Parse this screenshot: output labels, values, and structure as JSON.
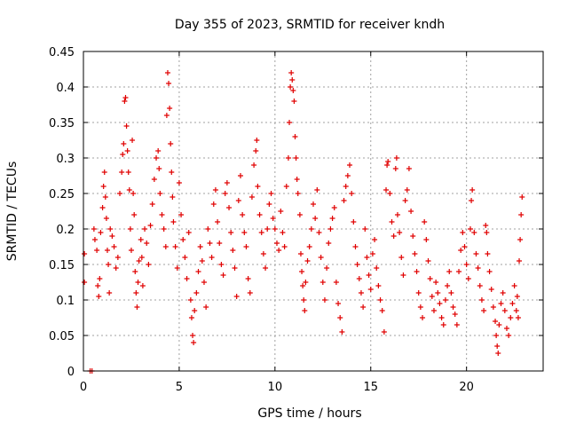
{
  "chart_data": {
    "type": "scatter",
    "title": "Day 355 of 2023, SRMTID for receiver kndh",
    "xlabel": "GPS time / hours",
    "ylabel": "SRMTID / TECUs",
    "xlim": [
      0,
      24
    ],
    "ylim": [
      0,
      0.45
    ],
    "xticks": [
      0,
      5,
      10,
      15,
      20
    ],
    "xtick_labels": [
      "0",
      "5",
      "10",
      "15",
      "20"
    ],
    "yticks": [
      0,
      0.05,
      0.1,
      0.15,
      0.2,
      0.25,
      0.3,
      0.35,
      0.4,
      0.45
    ],
    "ytick_labels": [
      "0",
      "0.05",
      "0.1",
      "0.15",
      "0.2",
      "0.25",
      "0.3",
      "0.35",
      "0.4",
      "0.45"
    ],
    "grid": true,
    "marker": "+",
    "color": "#e00000",
    "series": [
      {
        "name": "SRMTID",
        "points": [
          [
            0.05,
            0.165
          ],
          [
            0.05,
            0.125
          ],
          [
            0.35,
            0.0
          ],
          [
            0.45,
            0.0
          ],
          [
            0.55,
            0.2
          ],
          [
            0.6,
            0.185
          ],
          [
            0.7,
            0.17
          ],
          [
            0.75,
            0.12
          ],
          [
            0.8,
            0.105
          ],
          [
            0.85,
            0.13
          ],
          [
            0.9,
            0.195
          ],
          [
            1.0,
            0.23
          ],
          [
            1.05,
            0.26
          ],
          [
            1.1,
            0.28
          ],
          [
            1.15,
            0.245
          ],
          [
            1.2,
            0.215
          ],
          [
            1.25,
            0.17
          ],
          [
            1.3,
            0.15
          ],
          [
            1.35,
            0.11
          ],
          [
            1.4,
            0.2
          ],
          [
            1.5,
            0.19
          ],
          [
            1.6,
            0.175
          ],
          [
            1.7,
            0.145
          ],
          [
            1.8,
            0.16
          ],
          [
            1.9,
            0.25
          ],
          [
            2.0,
            0.28
          ],
          [
            2.05,
            0.305
          ],
          [
            2.1,
            0.32
          ],
          [
            2.15,
            0.38
          ],
          [
            2.2,
            0.385
          ],
          [
            2.25,
            0.345
          ],
          [
            2.3,
            0.31
          ],
          [
            2.35,
            0.28
          ],
          [
            2.4,
            0.255
          ],
          [
            2.45,
            0.2
          ],
          [
            2.5,
            0.17
          ],
          [
            2.55,
            0.325
          ],
          [
            2.6,
            0.25
          ],
          [
            2.65,
            0.22
          ],
          [
            2.7,
            0.14
          ],
          [
            2.75,
            0.11
          ],
          [
            2.8,
            0.09
          ],
          [
            2.85,
            0.125
          ],
          [
            2.9,
            0.155
          ],
          [
            3.0,
            0.185
          ],
          [
            3.05,
            0.16
          ],
          [
            3.1,
            0.12
          ],
          [
            3.2,
            0.2
          ],
          [
            3.3,
            0.18
          ],
          [
            3.4,
            0.15
          ],
          [
            3.5,
            0.205
          ],
          [
            3.6,
            0.235
          ],
          [
            3.7,
            0.27
          ],
          [
            3.8,
            0.3
          ],
          [
            3.9,
            0.31
          ],
          [
            3.95,
            0.285
          ],
          [
            4.0,
            0.25
          ],
          [
            4.1,
            0.22
          ],
          [
            4.2,
            0.2
          ],
          [
            4.3,
            0.175
          ],
          [
            4.35,
            0.36
          ],
          [
            4.4,
            0.42
          ],
          [
            4.45,
            0.405
          ],
          [
            4.5,
            0.37
          ],
          [
            4.55,
            0.32
          ],
          [
            4.6,
            0.28
          ],
          [
            4.65,
            0.245
          ],
          [
            4.7,
            0.21
          ],
          [
            4.8,
            0.175
          ],
          [
            4.9,
            0.145
          ],
          [
            5.0,
            0.265
          ],
          [
            5.1,
            0.22
          ],
          [
            5.2,
            0.185
          ],
          [
            5.3,
            0.16
          ],
          [
            5.4,
            0.13
          ],
          [
            5.5,
            0.195
          ],
          [
            5.6,
            0.1
          ],
          [
            5.65,
            0.075
          ],
          [
            5.7,
            0.05
          ],
          [
            5.75,
            0.04
          ],
          [
            5.8,
            0.085
          ],
          [
            5.9,
            0.11
          ],
          [
            6.0,
            0.14
          ],
          [
            6.1,
            0.175
          ],
          [
            6.2,
            0.155
          ],
          [
            6.3,
            0.125
          ],
          [
            6.4,
            0.09
          ],
          [
            6.5,
            0.2
          ],
          [
            6.6,
            0.18
          ],
          [
            6.7,
            0.16
          ],
          [
            6.8,
            0.235
          ],
          [
            6.9,
            0.255
          ],
          [
            7.0,
            0.21
          ],
          [
            7.1,
            0.18
          ],
          [
            7.2,
            0.15
          ],
          [
            7.3,
            0.135
          ],
          [
            7.4,
            0.25
          ],
          [
            7.5,
            0.265
          ],
          [
            7.6,
            0.23
          ],
          [
            7.7,
            0.195
          ],
          [
            7.8,
            0.17
          ],
          [
            7.9,
            0.145
          ],
          [
            8.0,
            0.105
          ],
          [
            8.1,
            0.24
          ],
          [
            8.2,
            0.275
          ],
          [
            8.3,
            0.22
          ],
          [
            8.4,
            0.195
          ],
          [
            8.5,
            0.175
          ],
          [
            8.6,
            0.13
          ],
          [
            8.7,
            0.11
          ],
          [
            8.8,
            0.245
          ],
          [
            8.9,
            0.29
          ],
          [
            9.0,
            0.31
          ],
          [
            9.05,
            0.325
          ],
          [
            9.1,
            0.26
          ],
          [
            9.2,
            0.22
          ],
          [
            9.3,
            0.195
          ],
          [
            9.4,
            0.165
          ],
          [
            9.5,
            0.145
          ],
          [
            9.6,
            0.2
          ],
          [
            9.7,
            0.235
          ],
          [
            9.8,
            0.25
          ],
          [
            9.9,
            0.215
          ],
          [
            10.0,
            0.2
          ],
          [
            10.1,
            0.18
          ],
          [
            10.2,
            0.17
          ],
          [
            10.3,
            0.225
          ],
          [
            10.4,
            0.195
          ],
          [
            10.5,
            0.175
          ],
          [
            10.6,
            0.26
          ],
          [
            10.7,
            0.3
          ],
          [
            10.75,
            0.35
          ],
          [
            10.8,
            0.4
          ],
          [
            10.85,
            0.42
          ],
          [
            10.9,
            0.41
          ],
          [
            10.95,
            0.395
          ],
          [
            11.0,
            0.38
          ],
          [
            11.05,
            0.33
          ],
          [
            11.1,
            0.3
          ],
          [
            11.15,
            0.27
          ],
          [
            11.2,
            0.25
          ],
          [
            11.3,
            0.22
          ],
          [
            11.35,
            0.165
          ],
          [
            11.4,
            0.14
          ],
          [
            11.45,
            0.12
          ],
          [
            11.5,
            0.1
          ],
          [
            11.55,
            0.085
          ],
          [
            11.6,
            0.125
          ],
          [
            11.7,
            0.155
          ],
          [
            11.8,
            0.175
          ],
          [
            11.9,
            0.2
          ],
          [
            12.0,
            0.235
          ],
          [
            12.1,
            0.215
          ],
          [
            12.2,
            0.255
          ],
          [
            12.3,
            0.195
          ],
          [
            12.4,
            0.16
          ],
          [
            12.5,
            0.125
          ],
          [
            12.6,
            0.1
          ],
          [
            12.7,
            0.145
          ],
          [
            12.8,
            0.18
          ],
          [
            12.9,
            0.2
          ],
          [
            13.0,
            0.215
          ],
          [
            13.1,
            0.23
          ],
          [
            13.2,
            0.125
          ],
          [
            13.3,
            0.095
          ],
          [
            13.4,
            0.075
          ],
          [
            13.5,
            0.055
          ],
          [
            13.6,
            0.24
          ],
          [
            13.7,
            0.26
          ],
          [
            13.8,
            0.275
          ],
          [
            13.9,
            0.29
          ],
          [
            14.0,
            0.25
          ],
          [
            14.1,
            0.21
          ],
          [
            14.2,
            0.175
          ],
          [
            14.3,
            0.15
          ],
          [
            14.4,
            0.13
          ],
          [
            14.5,
            0.11
          ],
          [
            14.6,
            0.09
          ],
          [
            14.7,
            0.2
          ],
          [
            14.8,
            0.16
          ],
          [
            14.9,
            0.135
          ],
          [
            15.0,
            0.115
          ],
          [
            15.1,
            0.165
          ],
          [
            15.2,
            0.185
          ],
          [
            15.3,
            0.145
          ],
          [
            15.4,
            0.12
          ],
          [
            15.5,
            0.1
          ],
          [
            15.6,
            0.085
          ],
          [
            15.7,
            0.055
          ],
          [
            15.8,
            0.255
          ],
          [
            15.85,
            0.29
          ],
          [
            15.9,
            0.295
          ],
          [
            16.0,
            0.25
          ],
          [
            16.1,
            0.21
          ],
          [
            16.2,
            0.19
          ],
          [
            16.3,
            0.285
          ],
          [
            16.35,
            0.3
          ],
          [
            16.4,
            0.22
          ],
          [
            16.5,
            0.195
          ],
          [
            16.6,
            0.16
          ],
          [
            16.7,
            0.135
          ],
          [
            16.8,
            0.24
          ],
          [
            16.9,
            0.255
          ],
          [
            17.0,
            0.285
          ],
          [
            17.1,
            0.225
          ],
          [
            17.2,
            0.19
          ],
          [
            17.3,
            0.165
          ],
          [
            17.4,
            0.14
          ],
          [
            17.5,
            0.11
          ],
          [
            17.6,
            0.09
          ],
          [
            17.7,
            0.075
          ],
          [
            17.8,
            0.21
          ],
          [
            17.9,
            0.185
          ],
          [
            18.0,
            0.155
          ],
          [
            18.1,
            0.13
          ],
          [
            18.2,
            0.105
          ],
          [
            18.3,
            0.085
          ],
          [
            18.4,
            0.125
          ],
          [
            18.5,
            0.11
          ],
          [
            18.6,
            0.095
          ],
          [
            18.7,
            0.075
          ],
          [
            18.8,
            0.065
          ],
          [
            18.9,
            0.1
          ],
          [
            19.0,
            0.12
          ],
          [
            19.1,
            0.14
          ],
          [
            19.2,
            0.11
          ],
          [
            19.3,
            0.09
          ],
          [
            19.4,
            0.08
          ],
          [
            19.5,
            0.065
          ],
          [
            19.6,
            0.14
          ],
          [
            19.7,
            0.17
          ],
          [
            19.8,
            0.195
          ],
          [
            19.9,
            0.175
          ],
          [
            20.0,
            0.15
          ],
          [
            20.1,
            0.13
          ],
          [
            20.2,
            0.2
          ],
          [
            20.25,
            0.24
          ],
          [
            20.3,
            0.255
          ],
          [
            20.4,
            0.195
          ],
          [
            20.5,
            0.165
          ],
          [
            20.6,
            0.145
          ],
          [
            20.7,
            0.12
          ],
          [
            20.8,
            0.1
          ],
          [
            20.9,
            0.085
          ],
          [
            21.0,
            0.205
          ],
          [
            21.05,
            0.195
          ],
          [
            21.1,
            0.165
          ],
          [
            21.2,
            0.14
          ],
          [
            21.3,
            0.115
          ],
          [
            21.4,
            0.09
          ],
          [
            21.5,
            0.07
          ],
          [
            21.55,
            0.05
          ],
          [
            21.6,
            0.035
          ],
          [
            21.65,
            0.025
          ],
          [
            21.7,
            0.065
          ],
          [
            21.8,
            0.095
          ],
          [
            21.9,
            0.11
          ],
          [
            22.0,
            0.085
          ],
          [
            22.1,
            0.06
          ],
          [
            22.2,
            0.05
          ],
          [
            22.3,
            0.075
          ],
          [
            22.4,
            0.095
          ],
          [
            22.5,
            0.12
          ],
          [
            22.6,
            0.085
          ],
          [
            22.65,
            0.105
          ],
          [
            22.7,
            0.075
          ],
          [
            22.75,
            0.155
          ],
          [
            22.8,
            0.185
          ],
          [
            22.85,
            0.22
          ],
          [
            22.9,
            0.245
          ]
        ]
      }
    ]
  }
}
